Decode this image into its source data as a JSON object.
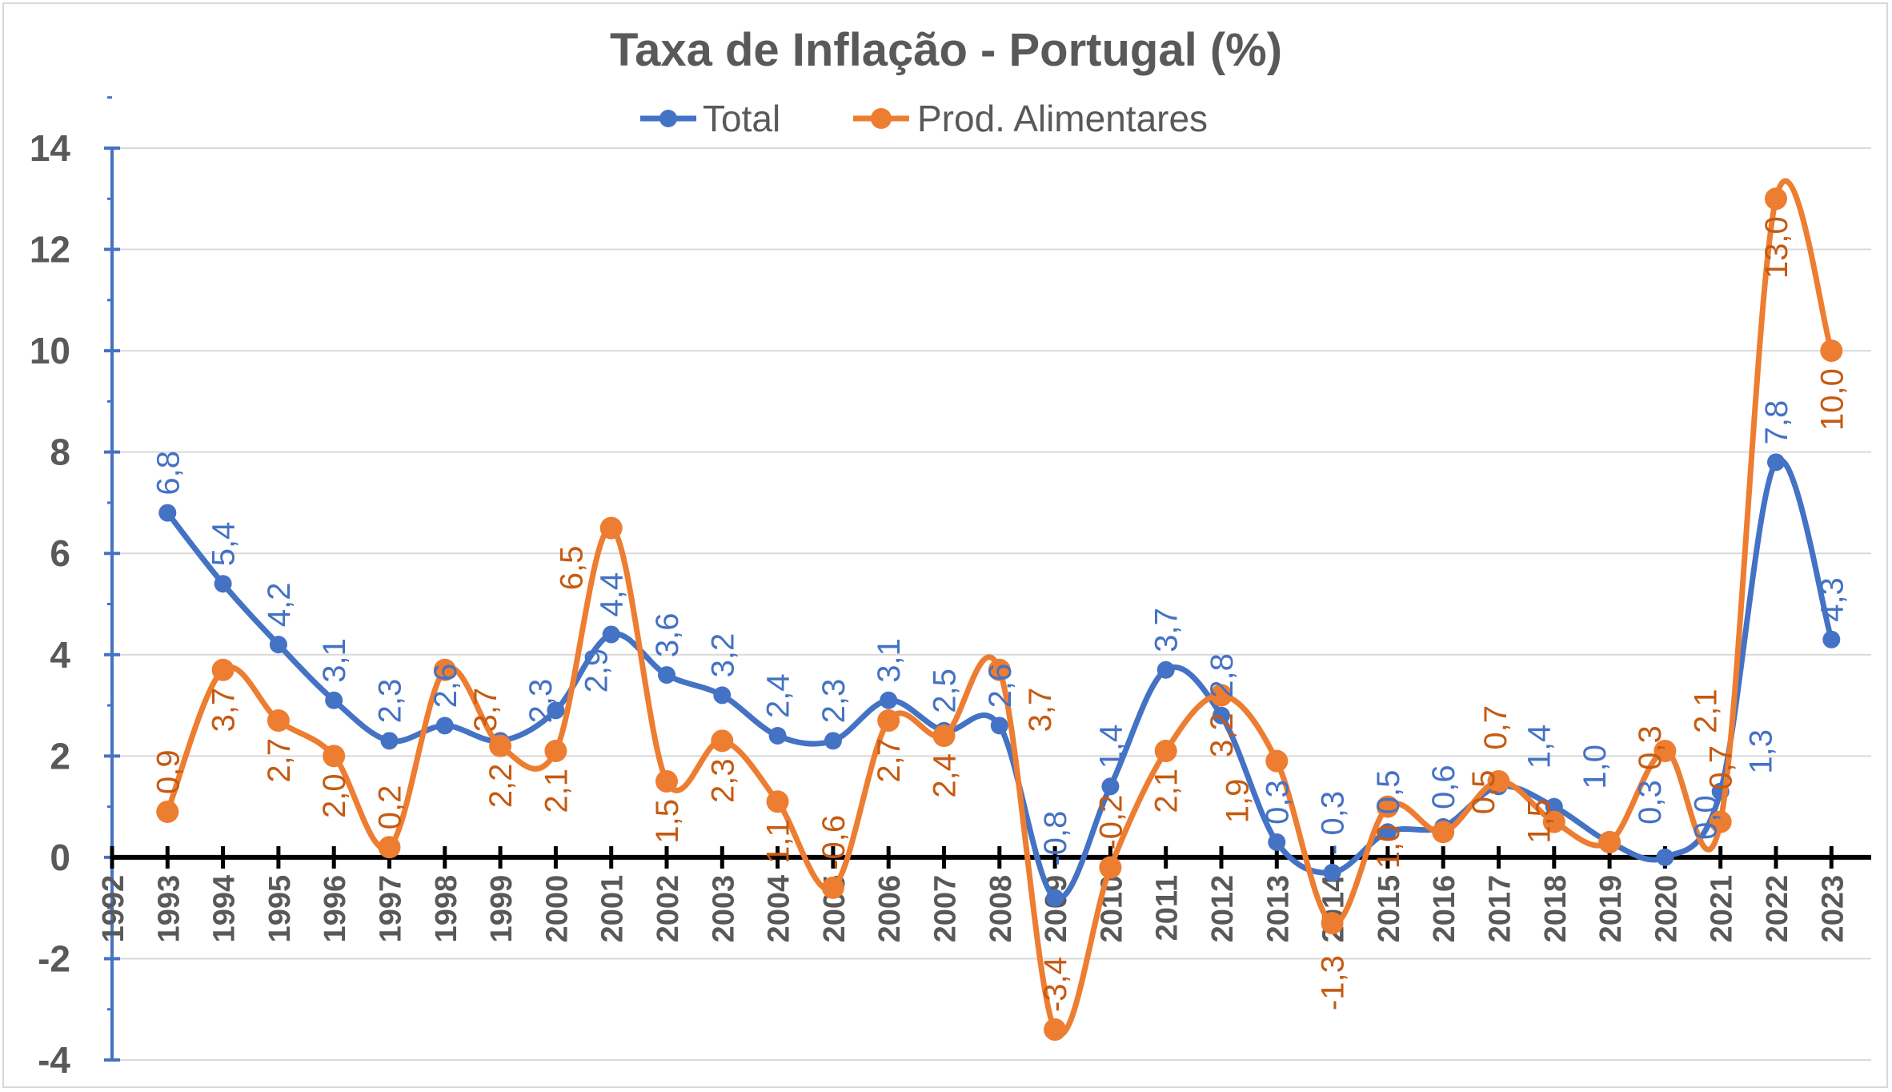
{
  "chart_data": {
    "type": "line",
    "title": "Taxa de Inflação - Portugal (%)",
    "xlabel": "",
    "ylabel": "",
    "categories": [
      "1992",
      "1993",
      "1994",
      "1995",
      "1996",
      "1997",
      "1998",
      "1999",
      "2000",
      "2001",
      "2002",
      "2003",
      "2004",
      "2005",
      "2006",
      "2007",
      "2008",
      "2009",
      "2010",
      "2011",
      "2012",
      "2013",
      "2014",
      "2015",
      "2016",
      "2017",
      "2018",
      "2019",
      "2020",
      "2021",
      "2022",
      "2023"
    ],
    "ylim": [
      -4,
      14
    ],
    "yticks": [
      "-4",
      "-2",
      "0",
      "2",
      "4",
      "6",
      "8",
      "10",
      "12",
      "14"
    ],
    "grid": true,
    "smoothed": true,
    "legend_position": "top",
    "series": [
      {
        "name": "Total",
        "color": "#4472C4",
        "values": [
          null,
          6.8,
          5.4,
          4.2,
          3.1,
          2.3,
          2.6,
          2.3,
          2.9,
          4.4,
          3.6,
          3.2,
          2.4,
          2.3,
          3.1,
          2.5,
          2.6,
          -0.8,
          1.4,
          3.7,
          2.8,
          0.3,
          -0.3,
          0.5,
          0.6,
          1.4,
          1.0,
          0.3,
          0.0,
          1.3,
          7.8,
          4.3
        ],
        "labels": [
          null,
          "6,8",
          "5,4",
          "4,2",
          "3,1",
          "2,3",
          "2,6",
          "2,3",
          "2,9",
          "4,4",
          "3,6",
          "3,2",
          "2,4",
          "2,3",
          "3,1",
          "2,5",
          "2,6",
          "-0,8",
          "1,4",
          "3,7",
          "2,8",
          "0,3",
          "- 0,3",
          "0,5",
          "0,6",
          "1,4",
          "1,0",
          "0,3",
          "0,0",
          "1,3",
          "7,8",
          "4,3"
        ]
      },
      {
        "name": "Prod. Alimentares",
        "color": "#ED7D31",
        "values": [
          null,
          0.9,
          3.7,
          2.7,
          2.0,
          0.2,
          3.7,
          2.2,
          2.1,
          6.5,
          1.5,
          2.3,
          1.1,
          -0.6,
          2.7,
          2.4,
          3.7,
          -3.4,
          -0.2,
          2.1,
          3.2,
          1.9,
          -1.3,
          1.0,
          0.5,
          1.5,
          0.7,
          0.3,
          2.1,
          0.7,
          13.0,
          10.0
        ],
        "labels": [
          null,
          "0,9",
          "3,7",
          "2,7",
          "2,0",
          "0,2",
          "3,7",
          "2,2",
          "2,1",
          "6,5",
          "1,5",
          "2,3",
          "1,1",
          "-0,6",
          "2,7",
          "2,4",
          "3,7",
          "-3,4",
          "-0,2",
          "2,1",
          "3,2",
          "1,9",
          "-1,3",
          "1,0",
          "0,5",
          "1,5",
          "0,7",
          "0,3",
          "2,1",
          "0,7",
          "13,0",
          "10,0"
        ]
      }
    ]
  }
}
